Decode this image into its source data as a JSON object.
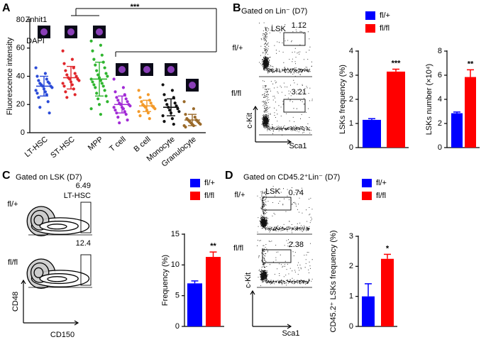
{
  "chart_data": [
    {
      "type": "strip",
      "ylabel": "Fluorescence intensity",
      "ylim": [
        0,
        80
      ],
      "yticks": [
        0,
        20,
        40,
        60,
        80
      ],
      "significance": "***",
      "stain_labels": [
        "Znhit1",
        "DAPI"
      ],
      "groups": [
        {
          "name": "LT-HSC",
          "color": "#2b4bd8",
          "mean": 33,
          "sd": 7,
          "points": [
            46,
            42,
            40,
            38,
            37,
            36,
            35,
            35,
            34,
            33,
            33,
            32,
            31,
            30,
            29,
            28,
            27,
            25,
            22,
            18,
            14
          ]
        },
        {
          "name": "ST-HSC",
          "color": "#e0262b",
          "mean": 39,
          "sd": 8,
          "points": [
            58,
            52,
            49,
            46,
            44,
            42,
            41,
            40,
            39,
            38,
            38,
            37,
            36,
            35,
            34,
            33,
            31,
            29,
            27,
            25
          ]
        },
        {
          "name": "MPP",
          "color": "#2fb52f",
          "mean": 38,
          "sd": 12,
          "points": [
            65,
            62,
            58,
            55,
            52,
            50,
            48,
            46,
            44,
            42,
            41,
            40,
            39,
            38,
            37,
            36,
            35,
            34,
            33,
            32,
            30,
            28,
            26,
            24,
            22,
            20,
            17,
            13
          ]
        },
        {
          "name": "T cell",
          "color": "#a22bd6",
          "mean": 20,
          "sd": 6,
          "points": [
            38,
            32,
            29,
            27,
            25,
            24,
            23,
            22,
            21,
            20,
            20,
            19,
            18,
            18,
            17,
            16,
            15,
            14,
            13,
            11,
            9,
            7
          ]
        },
        {
          "name": "B cell",
          "color": "#f39a2a",
          "mean": 19,
          "sd": 4,
          "points": [
            30,
            27,
            25,
            23,
            22,
            21,
            20,
            19,
            19,
            18,
            18,
            17,
            16,
            15,
            14,
            12,
            10
          ]
        },
        {
          "name": "Monocyte",
          "color": "#111111",
          "mean": 18,
          "sd": 6,
          "points": [
            34,
            30,
            27,
            25,
            23,
            21,
            20,
            19,
            18,
            17,
            16,
            15,
            14,
            12,
            10,
            8,
            6
          ]
        },
        {
          "name": "Granulocyte",
          "color": "#9a6a2a",
          "mean": 9,
          "sd": 4,
          "points": [
            22,
            17,
            13,
            11,
            10,
            9,
            9,
            8,
            8,
            7,
            7,
            6,
            6,
            5,
            5,
            4
          ]
        }
      ]
    },
    {
      "type": "bar",
      "ylabel": "LSKs frequency (%)",
      "ylim": [
        0,
        4
      ],
      "yticks": [
        0,
        1,
        2,
        3,
        4
      ],
      "legend": true,
      "significance": "***",
      "series": [
        {
          "name": "fl/+",
          "color": "#0000ff",
          "values": [
            1.15
          ],
          "errors": [
            0.05
          ]
        },
        {
          "name": "fl/fl",
          "color": "#ff0000",
          "values": [
            3.15
          ],
          "errors": [
            0.1
          ]
        }
      ]
    },
    {
      "type": "bar",
      "ylabel": "LSKs number (×10⁴)",
      "ylim": [
        0,
        8
      ],
      "yticks": [
        0,
        2,
        4,
        6,
        8
      ],
      "legend": false,
      "significance": "**",
      "series": [
        {
          "name": "fl/+",
          "color": "#0000ff",
          "values": [
            2.85
          ],
          "errors": [
            0.1
          ]
        },
        {
          "name": "fl/fl",
          "color": "#ff0000",
          "values": [
            5.85
          ],
          "errors": [
            0.6
          ]
        }
      ]
    },
    {
      "type": "bar",
      "ylabel": "Frequency (%)",
      "ylim": [
        0,
        15
      ],
      "yticks": [
        0,
        5,
        10,
        15
      ],
      "legend": true,
      "significance": "**",
      "series": [
        {
          "name": "fl/+",
          "color": "#0000ff",
          "values": [
            7.0
          ],
          "errors": [
            0.4
          ]
        },
        {
          "name": "fl/fl",
          "color": "#ff0000",
          "values": [
            11.3
          ],
          "errors": [
            0.8
          ]
        }
      ]
    },
    {
      "type": "bar",
      "ylabel": "CD45.2⁺ LSKs frequency (%)",
      "ylim": [
        0,
        3
      ],
      "yticks": [
        0,
        1,
        2,
        3
      ],
      "legend": true,
      "significance": "*",
      "series": [
        {
          "name": "fl/+",
          "color": "#0000ff",
          "values": [
            1.0
          ],
          "errors": [
            0.42
          ]
        },
        {
          "name": "fl/fl",
          "color": "#ff0000",
          "values": [
            2.25
          ],
          "errors": [
            0.15
          ]
        }
      ]
    }
  ],
  "panels": [
    {
      "letter": "A"
    },
    {
      "letter": "B",
      "gate_title": "Gated on Lin⁻ (D7)",
      "x_label": "Sca1",
      "y_label": "c-Kit",
      "plots": [
        {
          "label": "fl/+",
          "gate": "LSK",
          "percent": 1.12
        },
        {
          "label": "fl/fl",
          "percent": 3.21
        }
      ]
    },
    {
      "letter": "C",
      "gate_title": "Gated on LSK (D7)",
      "x_label": "CD150",
      "y_label": "CD48",
      "plots": [
        {
          "label": "fl/+",
          "gate": "LT-HSC",
          "percent": 6.49
        },
        {
          "label": "fl/fl",
          "percent": 12.4
        }
      ]
    },
    {
      "letter": "D",
      "gate_title": "Gated on CD45.2⁺Lin⁻ (D7)",
      "x_label": "Sca1",
      "y_label": "c-Kit",
      "plots": [
        {
          "label": "fl/+",
          "gate": "LSK",
          "percent": 0.74
        },
        {
          "label": "fl/fl",
          "percent": 2.38
        }
      ]
    }
  ]
}
